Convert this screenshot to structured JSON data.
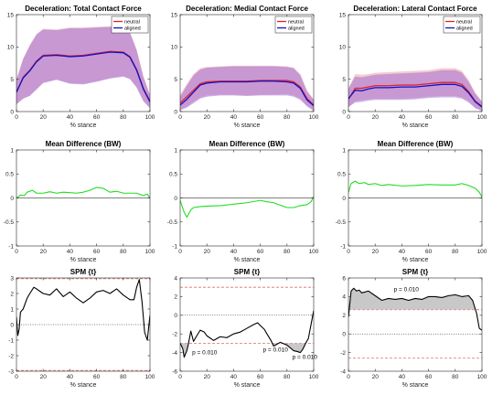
{
  "chart_data": [
    {
      "type": "area",
      "title": "Deceleration: Total Contact Force",
      "xlabel": "% stance",
      "xlim": [
        0,
        100
      ],
      "ylim": [
        0,
        15
      ],
      "xticks": [
        0,
        20,
        40,
        60,
        80,
        100
      ],
      "yticks": [
        0,
        5,
        10,
        15
      ],
      "x": [
        0,
        5,
        10,
        15,
        20,
        30,
        40,
        50,
        60,
        70,
        80,
        85,
        90,
        95,
        100
      ],
      "series": [
        {
          "name": "neutral",
          "color": "#e0202a",
          "values": [
            3.0,
            5.3,
            6.4,
            7.8,
            8.7,
            8.8,
            8.6,
            8.7,
            9.0,
            9.3,
            9.2,
            8.5,
            6.5,
            3.6,
            1.6
          ],
          "lower": [
            1.2,
            2.0,
            2.5,
            3.5,
            4.5,
            5.0,
            4.4,
            4.3,
            4.7,
            5.2,
            5.5,
            5.1,
            3.8,
            1.7,
            0.6
          ],
          "upper": [
            5.0,
            8.2,
            10.3,
            12.0,
            12.8,
            12.7,
            13.0,
            13.0,
            13.1,
            13.2,
            13.1,
            12.3,
            9.6,
            5.5,
            2.6
          ]
        },
        {
          "name": "aligned",
          "color": "#1010c8",
          "values": [
            3.0,
            5.2,
            6.3,
            7.7,
            8.6,
            8.7,
            8.5,
            8.6,
            8.9,
            9.2,
            9.1,
            8.4,
            6.4,
            3.5,
            1.5
          ],
          "lower": [
            1.1,
            2.0,
            2.4,
            3.4,
            4.4,
            4.9,
            4.3,
            4.2,
            4.6,
            5.1,
            5.4,
            5.0,
            3.7,
            1.6,
            0.5
          ],
          "upper": [
            4.9,
            8.1,
            10.2,
            11.9,
            12.7,
            12.6,
            12.9,
            12.9,
            13.0,
            13.1,
            13.0,
            12.2,
            9.5,
            5.4,
            2.5
          ]
        }
      ],
      "legend": "top-right"
    },
    {
      "type": "area",
      "title": "Deceleration: Medial Contact Force",
      "xlabel": "% stance",
      "xlim": [
        0,
        100
      ],
      "ylim": [
        0,
        15
      ],
      "xticks": [
        0,
        20,
        40,
        60,
        80,
        100
      ],
      "yticks": [
        0,
        5,
        10,
        15
      ],
      "x": [
        0,
        5,
        10,
        15,
        20,
        30,
        40,
        50,
        60,
        70,
        80,
        85,
        90,
        95,
        100
      ],
      "series": [
        {
          "name": "neutral",
          "color": "#e0202a",
          "values": [
            1.3,
            2.3,
            3.3,
            4.3,
            4.6,
            4.7,
            4.7,
            4.7,
            4.8,
            4.8,
            4.8,
            4.6,
            3.8,
            2.0,
            1.0
          ],
          "lower": [
            0.3,
            0.8,
            1.5,
            2.2,
            2.5,
            2.6,
            2.6,
            2.5,
            2.6,
            2.6,
            2.7,
            2.5,
            2.0,
            0.9,
            0.2
          ],
          "upper": [
            2.6,
            4.3,
            5.8,
            6.7,
            6.9,
            7.0,
            7.1,
            7.1,
            7.1,
            7.1,
            7.0,
            6.8,
            5.8,
            3.3,
            1.9
          ]
        },
        {
          "name": "aligned",
          "color": "#1010c8",
          "values": [
            1.0,
            1.9,
            3.0,
            4.1,
            4.4,
            4.6,
            4.6,
            4.6,
            4.7,
            4.7,
            4.6,
            4.4,
            3.6,
            1.8,
            0.9
          ],
          "lower": [
            0.2,
            0.6,
            1.3,
            2.0,
            2.3,
            2.5,
            2.5,
            2.4,
            2.5,
            2.5,
            2.5,
            2.3,
            1.8,
            0.8,
            0.1
          ],
          "upper": [
            2.3,
            4.0,
            5.6,
            6.5,
            6.8,
            6.9,
            7.0,
            7.0,
            7.0,
            7.0,
            6.9,
            6.7,
            5.6,
            3.1,
            1.8
          ]
        }
      ],
      "legend": "top-right"
    },
    {
      "type": "area",
      "title": "Deceleration: Lateral Contact Force",
      "xlabel": "% stance",
      "xlim": [
        0,
        100
      ],
      "ylim": [
        0,
        15
      ],
      "xticks": [
        0,
        20,
        40,
        60,
        80,
        100
      ],
      "yticks": [
        0,
        5,
        10,
        15
      ],
      "x": [
        0,
        5,
        10,
        15,
        20,
        30,
        40,
        50,
        60,
        70,
        80,
        85,
        90,
        95,
        100
      ],
      "series": [
        {
          "name": "neutral",
          "color": "#e0202a",
          "values": [
            1.9,
            3.6,
            3.6,
            3.8,
            4.0,
            4.0,
            4.1,
            4.1,
            4.3,
            4.5,
            4.5,
            4.2,
            3.1,
            1.6,
            0.8
          ],
          "lower": [
            0.6,
            1.6,
            1.8,
            1.9,
            2.0,
            2.0,
            2.0,
            2.1,
            2.3,
            2.4,
            2.4,
            2.2,
            1.6,
            0.6,
            0.1
          ],
          "upper": [
            3.6,
            5.8,
            5.7,
            5.8,
            6.0,
            6.1,
            6.2,
            6.3,
            6.4,
            6.7,
            6.7,
            6.3,
            4.9,
            2.9,
            1.6
          ]
        },
        {
          "name": "aligned",
          "color": "#1010c8",
          "values": [
            2.0,
            3.3,
            3.2,
            3.5,
            3.7,
            3.7,
            3.8,
            3.8,
            4.0,
            4.2,
            4.2,
            3.9,
            2.9,
            1.5,
            0.7
          ],
          "lower": [
            0.7,
            1.4,
            1.5,
            1.7,
            1.8,
            1.8,
            1.8,
            1.9,
            2.1,
            2.2,
            2.2,
            2.0,
            1.4,
            0.5,
            0.1
          ],
          "upper": [
            3.5,
            5.4,
            5.3,
            5.5,
            5.7,
            5.8,
            5.9,
            6.0,
            6.1,
            6.4,
            6.4,
            6.0,
            4.6,
            2.8,
            1.5
          ]
        }
      ],
      "legend": "top-right"
    },
    {
      "type": "line",
      "title": "Mean Difference (BW)",
      "xlabel": "% stance",
      "xlim": [
        0,
        100
      ],
      "ylim": [
        -1,
        1
      ],
      "xticks": [
        0,
        20,
        40,
        60,
        80,
        100
      ],
      "yticks": [
        -1,
        -0.5,
        0,
        0.5,
        1
      ],
      "zero_line": true,
      "x": [
        0,
        3,
        6,
        8,
        12,
        15,
        20,
        25,
        30,
        35,
        40,
        45,
        50,
        55,
        60,
        65,
        70,
        75,
        80,
        85,
        90,
        95,
        98,
        100
      ],
      "series": [
        {
          "color": "#22dd22",
          "values": [
            0.0,
            0.06,
            0.05,
            0.12,
            0.16,
            0.1,
            0.1,
            0.13,
            0.1,
            0.12,
            0.11,
            0.1,
            0.12,
            0.16,
            0.22,
            0.2,
            0.12,
            0.14,
            0.1,
            0.1,
            0.1,
            0.05,
            0.08,
            0.0
          ]
        }
      ]
    },
    {
      "type": "line",
      "title": "Mean Difference (BW)",
      "xlabel": "% stance",
      "xlim": [
        0,
        100
      ],
      "ylim": [
        -1,
        1
      ],
      "xticks": [
        0,
        20,
        40,
        60,
        80,
        100
      ],
      "yticks": [
        -1,
        -0.5,
        0,
        0.5,
        1
      ],
      "zero_line": true,
      "x": [
        0,
        3,
        5,
        8,
        10,
        15,
        20,
        30,
        40,
        50,
        60,
        65,
        70,
        80,
        85,
        90,
        95,
        98,
        100
      ],
      "series": [
        {
          "color": "#22dd22",
          "values": [
            -0.05,
            -0.3,
            -0.4,
            -0.25,
            -0.2,
            -0.18,
            -0.17,
            -0.16,
            -0.13,
            -0.1,
            -0.05,
            -0.08,
            -0.1,
            -0.2,
            -0.2,
            -0.16,
            -0.14,
            -0.08,
            0.03
          ]
        }
      ]
    },
    {
      "type": "line",
      "title": "Mean Difference (BW)",
      "xlabel": "% stance",
      "xlim": [
        0,
        100
      ],
      "ylim": [
        -1,
        1
      ],
      "xticks": [
        0,
        20,
        40,
        60,
        80,
        100
      ],
      "yticks": [
        -1,
        -0.5,
        0,
        0.5,
        1
      ],
      "zero_line": true,
      "x": [
        0,
        2,
        5,
        8,
        12,
        15,
        20,
        25,
        30,
        40,
        50,
        60,
        70,
        80,
        85,
        90,
        95,
        98,
        100
      ],
      "series": [
        {
          "color": "#22dd22",
          "values": [
            0.12,
            0.3,
            0.35,
            0.3,
            0.32,
            0.28,
            0.3,
            0.26,
            0.28,
            0.25,
            0.26,
            0.28,
            0.27,
            0.27,
            0.3,
            0.26,
            0.2,
            0.12,
            0.02
          ]
        }
      ]
    },
    {
      "type": "line",
      "title": "SPM {t}",
      "xlabel": "% stance",
      "xlim": [
        0,
        100
      ],
      "ylim": [
        -3,
        3
      ],
      "xticks": [
        0,
        20,
        40,
        60,
        80,
        100
      ],
      "yticks": [
        -3,
        -2,
        -1,
        0,
        1,
        2,
        3
      ],
      "threshold": 2.95,
      "zero_line": true,
      "x": [
        0,
        1,
        2,
        3,
        5,
        8,
        10,
        13,
        15,
        20,
        25,
        30,
        35,
        40,
        45,
        50,
        55,
        60,
        65,
        70,
        75,
        80,
        85,
        88,
        90,
        92,
        94,
        96,
        98,
        100
      ],
      "series": [
        {
          "color": "#000000",
          "values": [
            0.5,
            -0.7,
            -0.3,
            0.8,
            1.0,
            1.7,
            2.0,
            2.4,
            2.3,
            2.0,
            1.9,
            2.3,
            1.8,
            2.1,
            1.7,
            1.4,
            1.7,
            2.1,
            2.2,
            2.0,
            2.3,
            1.9,
            1.6,
            1.6,
            2.4,
            2.9,
            1.5,
            -0.5,
            -1.0,
            0.6
          ]
        }
      ]
    },
    {
      "type": "line",
      "title": "SPM {t}",
      "xlabel": "% stance",
      "xlim": [
        0,
        100
      ],
      "ylim": [
        -6,
        4
      ],
      "xticks": [
        0,
        20,
        40,
        60,
        80,
        100
      ],
      "yticks": [
        -6,
        -4,
        -2,
        0,
        2,
        4
      ],
      "threshold": 3.0,
      "zero_line": true,
      "x": [
        0,
        2,
        3,
        5,
        6,
        8,
        10,
        12,
        15,
        18,
        20,
        25,
        30,
        35,
        40,
        45,
        50,
        55,
        58,
        60,
        63,
        65,
        68,
        70,
        75,
        80,
        85,
        88,
        90,
        92,
        94,
        96,
        98,
        100
      ],
      "series": [
        {
          "color": "#000000",
          "values": [
            -3.0,
            -3.6,
            -4.5,
            -3.8,
            -3.2,
            -1.7,
            -2.8,
            -2.3,
            -1.6,
            -1.8,
            -2.2,
            -2.7,
            -2.3,
            -2.4,
            -2.0,
            -1.8,
            -1.4,
            -1.0,
            -0.8,
            -1.1,
            -1.5,
            -2.0,
            -2.7,
            -3.3,
            -2.9,
            -3.2,
            -3.8,
            -3.9,
            -4.0,
            -3.6,
            -3.0,
            -2.5,
            -1.0,
            0.5
          ]
        }
      ],
      "annotations": [
        {
          "text": "p = 0.010",
          "x": 9,
          "y": -4.2
        },
        {
          "text": "p = 0.010",
          "x": 62,
          "y": -3.9
        },
        {
          "text": "p = 0.010",
          "x": 84,
          "y": -4.7
        }
      ]
    },
    {
      "type": "line",
      "title": "SPM {t}",
      "xlabel": "% stance",
      "xlim": [
        0,
        100
      ],
      "ylim": [
        -4,
        6
      ],
      "xticks": [
        0,
        20,
        40,
        60,
        80,
        100
      ],
      "yticks": [
        -4,
        -2,
        0,
        2,
        4,
        6
      ],
      "threshold": 2.6,
      "zero_line": true,
      "x": [
        0,
        2,
        4,
        6,
        8,
        10,
        15,
        20,
        25,
        30,
        35,
        40,
        45,
        50,
        55,
        60,
        65,
        70,
        75,
        80,
        85,
        90,
        93,
        96,
        98,
        100
      ],
      "series": [
        {
          "color": "#000000",
          "values": [
            1.8,
            4.6,
            4.9,
            4.6,
            4.7,
            4.4,
            4.6,
            4.1,
            3.6,
            3.8,
            3.7,
            3.8,
            3.6,
            3.8,
            3.7,
            4.0,
            4.0,
            3.9,
            4.1,
            4.2,
            4.0,
            4.1,
            3.6,
            2.2,
            0.6,
            0.4
          ]
        }
      ],
      "annotations": [
        {
          "text": "p = 0.010",
          "x": 34,
          "y": 4.6
        }
      ]
    }
  ]
}
